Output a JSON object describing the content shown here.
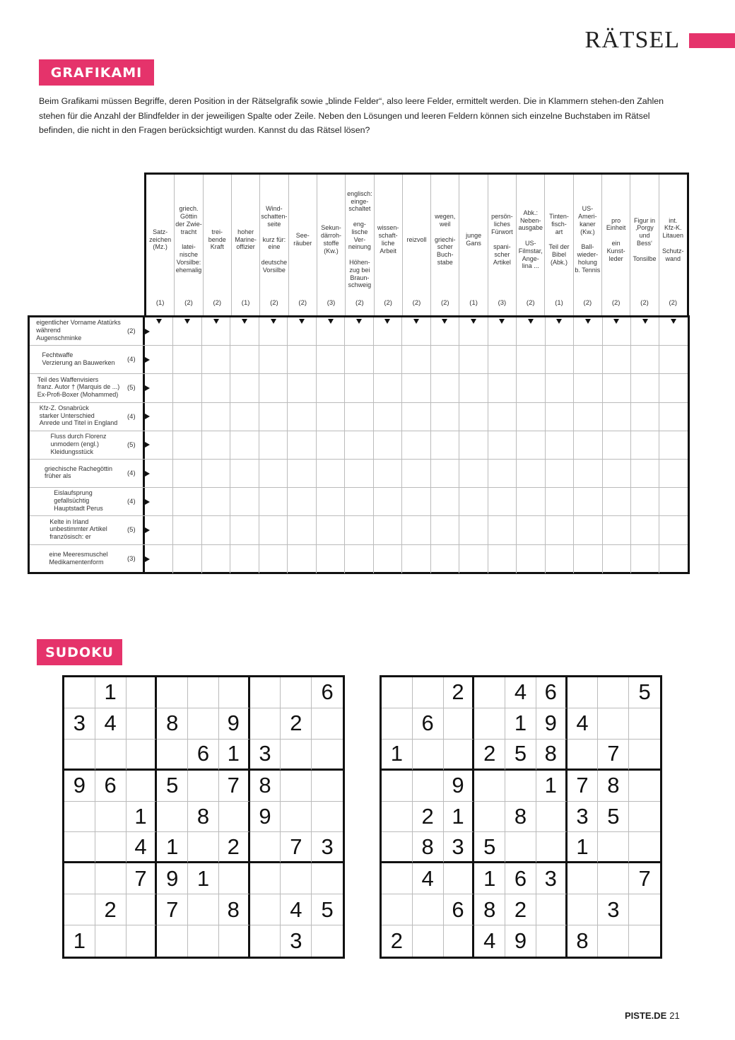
{
  "header": {
    "section_title": "RÄTSEL",
    "accent_color": "#e5336b"
  },
  "grafikami": {
    "title": "GRAFIKAMI",
    "intro": "Beim Grafikami müssen Begriffe, deren Position in der Rätselgrafik sowie „blinde Felder“, also leere Felder, ermittelt werden. Die in Klammern stehen-den Zahlen stehen für die Anzahl der Blindfelder in der jeweiligen Spalte oder Zeile. Neben den Lösungen und leeren Feldern können sich einzelne Buchstaben im Rätsel befinden, die nicht in den Fragen berücksichtigt wurden. Kannst du das Rätsel lösen?",
    "columns": [
      {
        "clue": "Satz-\nzeichen\n(Mz.)",
        "count": "(1)"
      },
      {
        "clue": "griech.\nGöttin\nder Zwie-\ntracht\n\nlatei-\nnische\nVorsilbe:\nehemalig",
        "count": "(2)"
      },
      {
        "clue": "trei-\nbende\nKraft",
        "count": "(2)"
      },
      {
        "clue": "hoher\nMarine-\noffizier",
        "count": "(1)"
      },
      {
        "clue": "Wind-\nschatten-\nseite\n\nkurz für:\neine\n\ndeutsche\nVorsilbe",
        "count": "(2)"
      },
      {
        "clue": "See-\nräuber",
        "count": "(2)"
      },
      {
        "clue": "Sekun-\ndärroh-\nstoffe\n(Kw.)",
        "count": "(3)"
      },
      {
        "clue": "englisch:\neinge-\nschaltet\n\neng-\nlische\nVer-\nneinung\n\nHöhen-\nzug bei\nBraun-\nschweig",
        "count": "(2)"
      },
      {
        "clue": "wissen-\nschaft-\nliche\nArbeit",
        "count": "(2)"
      },
      {
        "clue": "reizvoll",
        "count": "(2)"
      },
      {
        "clue": "wegen,\nweil\n\ngriechi-\nscher\nBuch-\nstabe",
        "count": "(2)"
      },
      {
        "clue": "junge\nGans",
        "count": "(1)"
      },
      {
        "clue": "persön-\nliches\nFürwort\n\nspani-\nscher\nArtikel",
        "count": "(3)"
      },
      {
        "clue": "Abk.:\nNeben-\nausgabe\n\nUS-\nFilmstar,\nAnge-\nlina ...",
        "count": "(2)"
      },
      {
        "clue": "Tinten-\nfisch-\nart\n\nTeil der\nBibel\n(Abk.)",
        "count": "(1)"
      },
      {
        "clue": "US-\nAmeri-\nkaner\n(Kw.)\n\nBall-\nwieder-\nholung\nb. Tennis",
        "count": "(2)"
      },
      {
        "clue": "pro\nEinheit\n\nein\nKunst-\nleder",
        "count": "(2)"
      },
      {
        "clue": "Figur in\n‚Porgy\nund\nBess‘\n\nTonsilbe",
        "count": "(2)"
      },
      {
        "clue": "int.\nKfz-K.\nLitauen\n\nSchutz-\nwand",
        "count": "(2)"
      }
    ],
    "rows": [
      {
        "clue": "eigentlicher Vorname Atatürks\nwährend\nAugenschminke",
        "count": "(2)"
      },
      {
        "clue": "Fechtwaffe\nVerzierung an Bauwerken",
        "count": "(4)"
      },
      {
        "clue": "Teil des Waffenvisiers\nfranz. Autor † (Marquis de ...)\nEx-Profi-Boxer (Mohammed)",
        "count": "(5)"
      },
      {
        "clue": "Kfz-Z. Osnabrück\nstarker Unterschied\nAnrede und Titel in England",
        "count": "(4)"
      },
      {
        "clue": "Fluss durch Florenz\nunmodern (engl.)\nKleidungsstück",
        "count": "(5)"
      },
      {
        "clue": "griechische Rachegöttin\nfrüher als",
        "count": "(4)"
      },
      {
        "clue": "Eislaufsprung\ngefallsüchtig\nHauptstadt Perus",
        "count": "(4)"
      },
      {
        "clue": "Kelte in Irland\nunbestimmter Artikel\nfranzösisch: er",
        "count": "(5)"
      },
      {
        "clue": "eine Meeresmuschel\nMedikamentenform",
        "count": "(3)"
      }
    ]
  },
  "sudoku": {
    "title": "SUDOKU",
    "puzzles": [
      {
        "rows": [
          [
            "",
            "1",
            "",
            "",
            "",
            "",
            "",
            "",
            "6"
          ],
          [
            "3",
            "4",
            "",
            "8",
            "",
            "9",
            "",
            "2",
            ""
          ],
          [
            "",
            "",
            "",
            "",
            "6",
            "1",
            "3",
            "",
            ""
          ],
          [
            "9",
            "6",
            "",
            "5",
            "",
            "7",
            "8",
            "",
            ""
          ],
          [
            "",
            "",
            "1",
            "",
            "8",
            "",
            "9",
            "",
            ""
          ],
          [
            "",
            "",
            "4",
            "1",
            "",
            "2",
            "",
            "7",
            "3"
          ],
          [
            "",
            "",
            "7",
            "9",
            "1",
            "",
            "",
            "",
            ""
          ],
          [
            "",
            "2",
            "",
            "7",
            "",
            "8",
            "",
            "4",
            "5"
          ],
          [
            "1",
            "",
            "",
            "",
            "",
            "",
            "",
            "3",
            ""
          ]
        ]
      },
      {
        "rows": [
          [
            "",
            "",
            "2",
            "",
            "4",
            "6",
            "",
            "",
            "5"
          ],
          [
            "",
            "6",
            "",
            "",
            "1",
            "9",
            "4",
            "",
            ""
          ],
          [
            "1",
            "",
            "",
            "2",
            "5",
            "8",
            "",
            "7",
            ""
          ],
          [
            "",
            "",
            "9",
            "",
            "",
            "1",
            "7",
            "8",
            ""
          ],
          [
            "",
            "2",
            "1",
            "",
            "8",
            "",
            "3",
            "5",
            ""
          ],
          [
            "",
            "8",
            "3",
            "5",
            "",
            "",
            "1",
            "",
            ""
          ],
          [
            "",
            "4",
            "",
            "1",
            "6",
            "3",
            "",
            "",
            "7"
          ],
          [
            "",
            "",
            "6",
            "8",
            "2",
            "",
            "",
            "3",
            ""
          ],
          [
            "2",
            "",
            "",
            "4",
            "9",
            "",
            "8",
            "",
            ""
          ]
        ]
      }
    ]
  },
  "footer": {
    "site": "PISTE.DE",
    "page": "21"
  }
}
